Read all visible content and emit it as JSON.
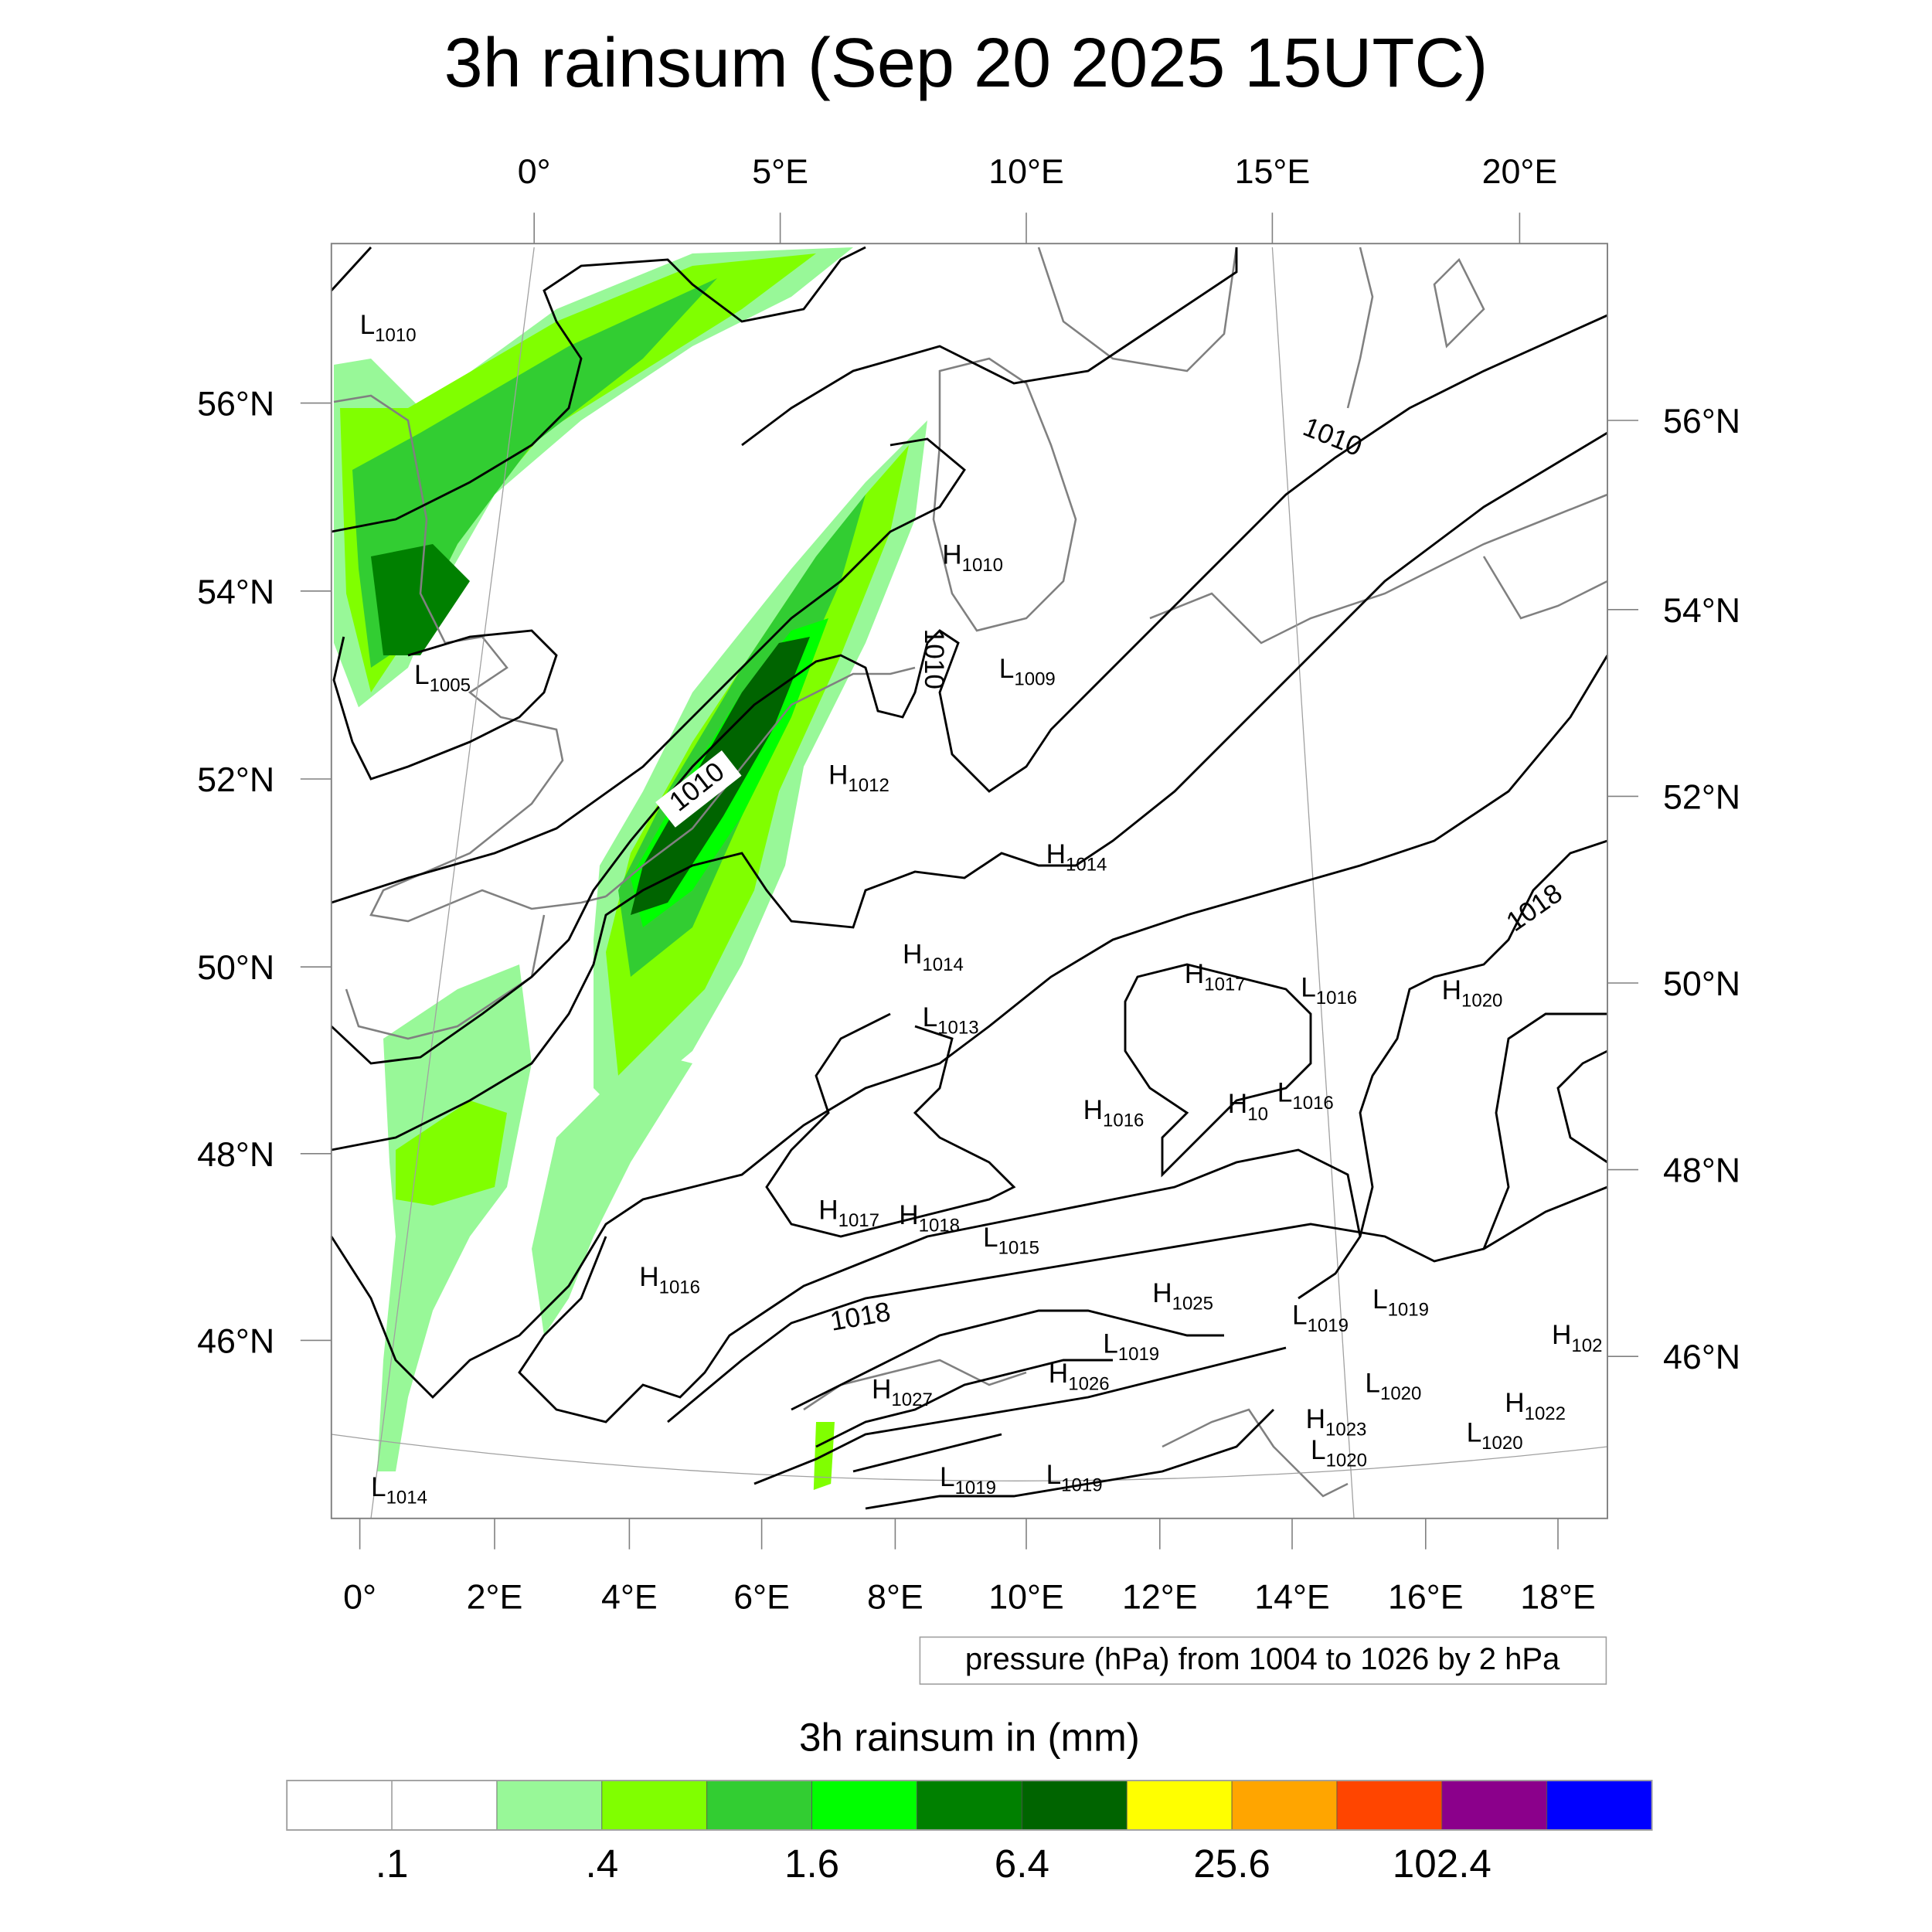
{
  "title": "3h rainsum (Sep 20 2025 15UTC)",
  "top_lon_labels": [
    "0°",
    "5°E",
    "10°E",
    "15°E",
    "20°E"
  ],
  "bottom_lon_labels": [
    "0°",
    "2°E",
    "4°E",
    "6°E",
    "8°E",
    "10°E",
    "12°E",
    "14°E",
    "16°E",
    "18°E"
  ],
  "left_lat_labels": [
    "56°N",
    "54°N",
    "52°N",
    "50°N",
    "48°N",
    "46°N"
  ],
  "right_lat_labels": [
    "56°N",
    "54°N",
    "52°N",
    "50°N",
    "48°N",
    "46°N"
  ],
  "contour_info": "pressure (hPa) from 1004 to 1026 by 2 hPa",
  "colorbar": {
    "title": "3h rainsum in (mm)",
    "colors": [
      "#ffffff",
      "#ffffff",
      "#98f898",
      "#80ff00",
      "#32cd32",
      "#00ff00",
      "#008000",
      "#006400",
      "#ffff00",
      "#ffa500",
      "#ff4500",
      "#8b008b",
      "#0000ff"
    ],
    "tick_labels": [
      ".1",
      ".4",
      "1.6",
      "6.4",
      "25.6",
      "102.4"
    ]
  },
  "pressure_centers": [
    {
      "type": "L",
      "value": "1010"
    },
    {
      "type": "L",
      "value": "1005"
    },
    {
      "type": "H",
      "value": "1010"
    },
    {
      "type": "L",
      "value": "1009"
    },
    {
      "type": "H",
      "value": "1012"
    },
    {
      "type": "H",
      "value": "1014"
    },
    {
      "type": "H",
      "value": "1014"
    },
    {
      "type": "L",
      "value": "1013"
    },
    {
      "type": "H",
      "value": "1017"
    },
    {
      "type": "L",
      "value": "1016"
    },
    {
      "type": "H",
      "value": "1020"
    },
    {
      "type": "H",
      "value": "1016"
    },
    {
      "type": "H",
      "value": "10"
    },
    {
      "type": "L",
      "value": "1016"
    },
    {
      "type": "H",
      "value": "1017"
    },
    {
      "type": "H",
      "value": "1018"
    },
    {
      "type": "L",
      "value": "1015"
    },
    {
      "type": "H",
      "value": "1016"
    },
    {
      "type": "H",
      "value": "1025"
    },
    {
      "type": "L",
      "value": "1019"
    },
    {
      "type": "L",
      "value": "1019"
    },
    {
      "type": "H",
      "value": "102"
    },
    {
      "type": "L",
      "value": "1019"
    },
    {
      "type": "H",
      "value": "1026"
    },
    {
      "type": "H",
      "value": "1027"
    },
    {
      "type": "L",
      "value": "1020"
    },
    {
      "type": "H",
      "value": "1022"
    },
    {
      "type": "H",
      "value": "1023"
    },
    {
      "type": "L",
      "value": "1020"
    },
    {
      "type": "L",
      "value": "1020"
    },
    {
      "type": "L",
      "value": "1019"
    },
    {
      "type": "L",
      "value": "1019"
    },
    {
      "type": "L",
      "value": "1014"
    }
  ],
  "contour_labels": [
    "1010",
    "1010",
    "1010",
    "1018",
    "1018"
  ]
}
